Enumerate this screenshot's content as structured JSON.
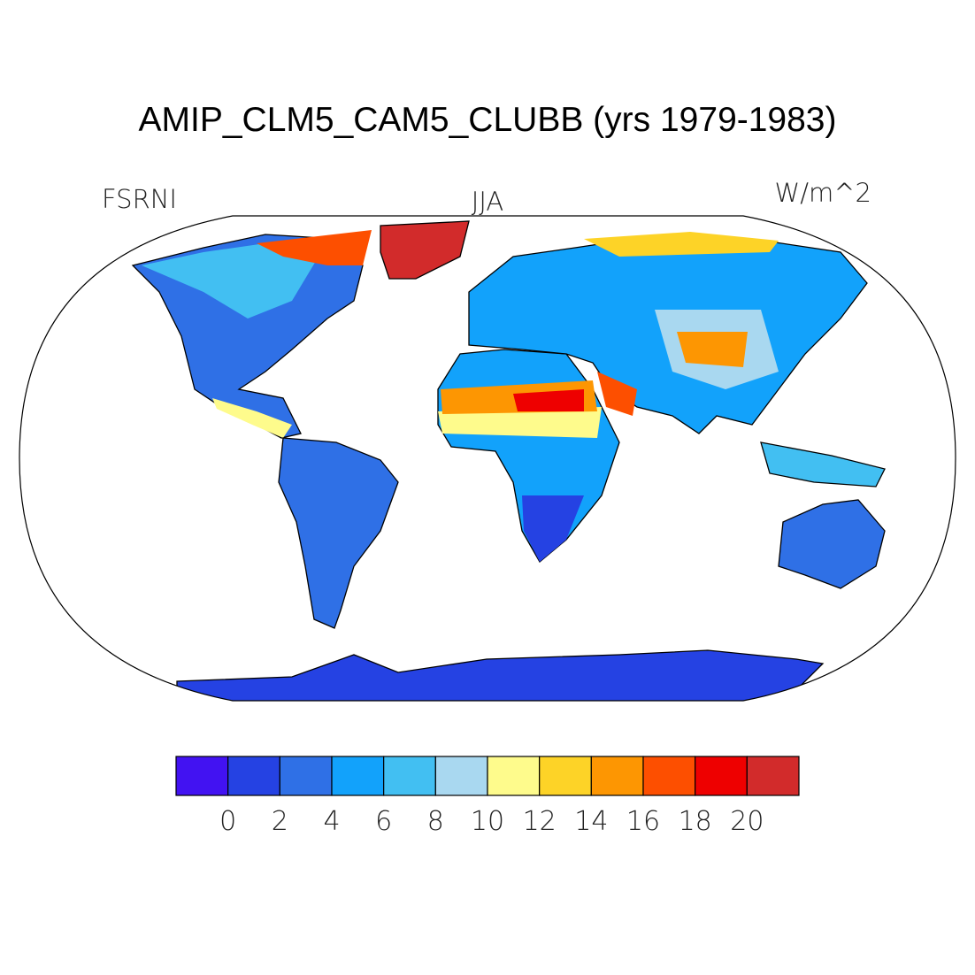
{
  "title": "AMIP_CLM5_CAM5_CLUBB (yrs 1979-1983)",
  "left_label": "FSRNI",
  "center_label": "JJA",
  "right_label": "W/m^2",
  "colorbar": {
    "colors": [
      "#4212f2",
      "#2542e3",
      "#2f70e6",
      "#12a2fb",
      "#42bff2",
      "#a9d8f0",
      "#fefb8c",
      "#fdd327",
      "#fd9602",
      "#fd4f00",
      "#ee0000",
      "#d22b2b"
    ],
    "ticks": [
      0,
      2,
      4,
      6,
      8,
      10,
      12,
      14,
      16,
      18,
      20
    ]
  }
}
